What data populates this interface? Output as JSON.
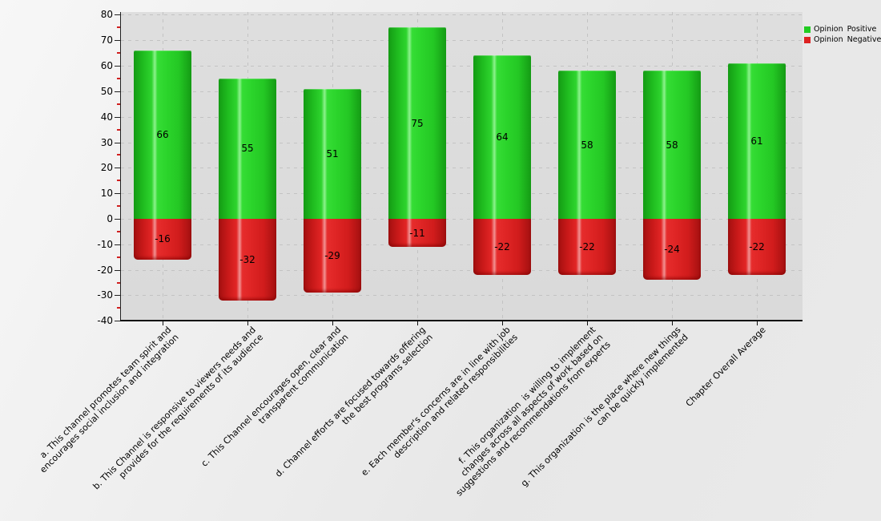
{
  "legend": {
    "items": [
      {
        "label": "Opinion Positive"
      },
      {
        "label": "Opinion Negative"
      }
    ]
  },
  "chart_data": {
    "type": "bar",
    "title": "",
    "xlabel": "",
    "ylabel": "",
    "categories": [
      "a. This channel promotes team spirit and\nencourages social inclusion and integration",
      "b. This Channel is responsive to viewers needs and\nprovides for the requirements of its audience",
      "c. This Channel encourages open, clear and\ntransparent communication",
      "d. Channel efforts are focused towards offering\nthe best programs selection",
      "e. Each member's concerns are in line with job\ndescription and related responsibilities",
      "f. This organization  is willing to implement\nchanges across all aspects of work based on\nsuggestions and recommendations from experts",
      "g. This organization is the place where new things\ncan be quickly implemented",
      "Chapter Overall Average"
    ],
    "series": [
      {
        "name": "Opinion Positive",
        "color": "#22cc22",
        "values": [
          66,
          55,
          51,
          75,
          64,
          58,
          58,
          61
        ]
      },
      {
        "name": "Opinion Negative",
        "color": "#dd2222",
        "values": [
          -16,
          -32,
          -29,
          -11,
          -22,
          -22,
          -24,
          -22
        ]
      }
    ],
    "ylim": [
      -40,
      80
    ],
    "ytick_step": 10,
    "yminor_step": 5,
    "yminor_tick_color": "#d02020",
    "grid": "dashed, horizontal and vertical",
    "legend_position": "top-right",
    "plot_background": "#dcdcdc",
    "value_labels": "inside segments, centered"
  }
}
